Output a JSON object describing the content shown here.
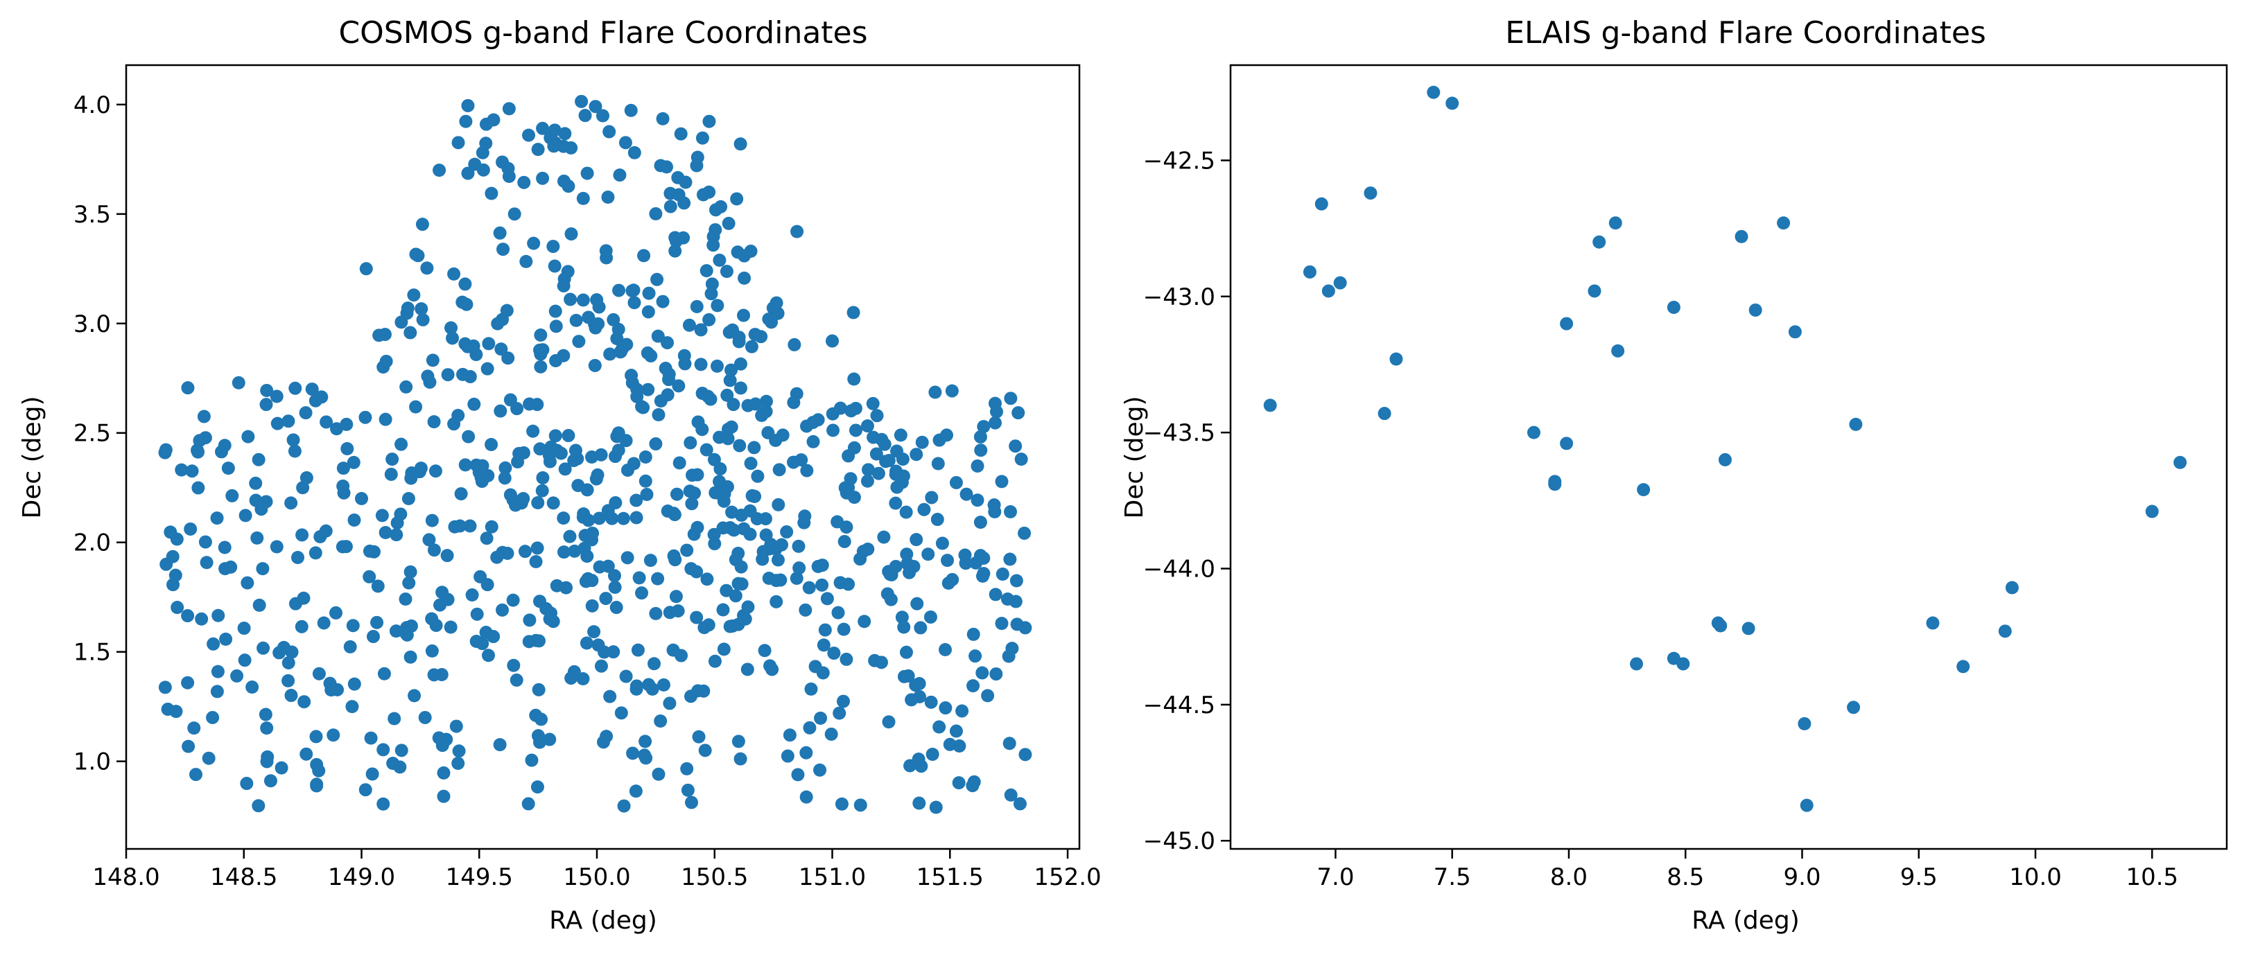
{
  "colors": {
    "point": "#1f77b4",
    "axes": "#000000",
    "background": "#ffffff"
  },
  "chart_data": [
    {
      "type": "scatter",
      "title": "COSMOS g-band Flare Coordinates",
      "xlabel": "RA (deg)",
      "ylabel": "Dec (deg)",
      "xlim": [
        148.0,
        152.05
      ],
      "ylim": [
        0.6,
        4.18
      ],
      "xticks": [
        148.0,
        148.5,
        149.0,
        149.5,
        150.0,
        150.5,
        151.0,
        151.5,
        152.0
      ],
      "xtick_labels": [
        "148.0",
        "148.5",
        "149.0",
        "149.5",
        "150.0",
        "150.5",
        "151.0",
        "151.5",
        "152.0"
      ],
      "yticks": [
        1.0,
        1.5,
        2.0,
        2.5,
        3.0,
        3.5,
        4.0
      ],
      "ytick_labels": [
        "1.0",
        "1.5",
        "2.0",
        "2.5",
        "3.0",
        "3.5",
        "4.0"
      ],
      "grid": false,
      "legend": "none",
      "point_count_estimate": 900,
      "x": [
        148.17,
        148.21,
        148.32,
        148.39,
        148.42,
        148.47,
        148.58,
        148.55,
        148.6,
        148.64,
        148.66,
        148.69,
        148.7,
        148.72,
        148.75,
        148.79,
        148.82,
        148.85,
        148.88,
        148.92,
        148.96,
        149.0,
        149.02,
        149.05,
        149.07,
        149.1,
        149.13,
        149.17,
        149.2,
        149.24,
        149.27,
        149.3,
        149.33,
        149.36,
        149.38,
        149.41,
        149.44,
        149.47,
        149.5,
        149.53,
        149.56,
        149.59,
        149.62,
        149.65,
        149.68,
        149.71,
        149.74,
        149.77,
        149.8,
        149.83,
        149.86,
        149.89,
        149.92,
        149.95,
        149.98,
        150.01,
        150.04,
        150.07,
        150.1,
        150.13,
        150.16,
        150.19,
        150.22,
        150.25,
        150.28,
        150.31,
        150.34,
        150.37,
        150.4,
        150.43,
        150.46,
        150.49,
        150.52,
        150.55,
        150.58,
        150.61,
        150.64,
        150.67,
        150.7,
        150.73,
        150.76,
        150.79,
        150.82,
        150.85,
        150.88,
        150.91,
        150.94,
        150.97,
        151.0,
        151.03,
        151.06,
        151.09,
        151.12,
        151.15,
        151.18,
        151.21,
        151.24,
        151.27,
        151.3,
        151.33,
        151.36,
        151.39,
        151.42,
        151.45,
        151.48,
        151.51,
        151.54,
        151.57,
        151.6,
        151.63,
        151.66,
        151.69,
        151.72,
        151.75,
        151.78,
        151.82
      ],
      "y": [
        1.9,
        1.85,
        1.65,
        1.41,
        1.88,
        1.39,
        1.88,
        2.27,
        1.02,
        1.98,
        0.97,
        1.45,
        2.18,
        1.72,
        2.25,
        2.7,
        1.4,
        2.55,
        1.12,
        1.98,
        1.25,
        2.2,
        3.25,
        1.57,
        1.8,
        2.95,
        2.38,
        1.05,
        2.2,
        3.31,
        1.2,
        2.1,
        3.7,
        1.1,
        2.98,
        2.58,
        3.18,
        1.76,
        2.32,
        3.91,
        1.57,
        2.6,
        1.95,
        3.5,
        2.18,
        3.86,
        1.21,
        2.88,
        1.65,
        2.42,
        3.65,
        1.38,
        2.26,
        3.95,
        1.71,
        2.11,
        3.3,
        1.5,
        2.87,
        1.93,
        3.78,
        2.62,
        1.35,
        2.45,
        3.1,
        1.68,
        2.22,
        3.55,
        1.88,
        2.55,
        1.05,
        3.18,
        2.48,
        1.78,
        2.63,
        3.82,
        1.42,
        2.21,
        2.58,
        3.02,
        1.97,
        2.49,
        1.12,
        3.42,
        2.09,
        1.33,
        2.56,
        1.6,
        2.92,
        1.22,
        2.07,
        3.05,
        0.8,
        2.28,
        1.46,
        2.47,
        1.18,
        1.89,
        2.38,
        0.98,
        1.72,
        2.15,
        1.27,
        2.36,
        1.51,
        1.83,
        1.07,
        2.22,
        1.58,
        1.94,
        1.3,
        2.14,
        1.63,
        1.48,
        1.73,
        1.61
      ]
    },
    {
      "type": "scatter",
      "title": "ELAIS g-band Flare Coordinates",
      "xlabel": "RA (deg)",
      "ylabel": "Dec (deg)",
      "xlim": [
        6.55,
        10.82
      ],
      "ylim": [
        -45.03,
        -42.15
      ],
      "xticks": [
        7.0,
        7.5,
        8.0,
        8.5,
        9.0,
        9.5,
        10.0,
        10.5
      ],
      "xtick_labels": [
        "7.0",
        "7.5",
        "8.0",
        "8.5",
        "9.0",
        "9.5",
        "10.0",
        "10.5"
      ],
      "yticks": [
        -45.0,
        -44.5,
        -44.0,
        -43.5,
        -43.0,
        -42.5
      ],
      "ytick_labels": [
        "−45.0",
        "−44.5",
        "−44.0",
        "−43.5",
        "−43.0",
        "−42.5"
      ],
      "grid": false,
      "legend": "none",
      "x": [
        6.72,
        6.89,
        6.94,
        6.97,
        7.02,
        7.15,
        7.21,
        7.26,
        7.42,
        7.5,
        7.85,
        7.94,
        7.94,
        7.99,
        7.99,
        8.11,
        8.13,
        8.2,
        8.21,
        8.29,
        8.32,
        8.45,
        8.45,
        8.49,
        8.64,
        8.65,
        8.67,
        8.74,
        8.77,
        8.8,
        8.92,
        8.97,
        9.01,
        9.02,
        9.22,
        9.23,
        9.56,
        9.69,
        9.87,
        9.9,
        10.5,
        10.62
      ],
      "y": [
        -43.4,
        -42.91,
        -42.66,
        -42.98,
        -42.95,
        -42.62,
        -43.43,
        -43.23,
        -42.25,
        -42.29,
        -43.5,
        -43.68,
        -43.69,
        -43.54,
        -43.1,
        -42.98,
        -42.8,
        -42.73,
        -43.2,
        -44.35,
        -43.71,
        -43.04,
        -44.33,
        -44.35,
        -44.2,
        -44.21,
        -43.6,
        -42.78,
        -44.22,
        -43.05,
        -42.73,
        -43.13,
        -44.57,
        -44.87,
        -44.51,
        -43.47,
        -44.2,
        -44.36,
        -44.23,
        -44.07,
        -43.79,
        -43.61
      ]
    }
  ]
}
